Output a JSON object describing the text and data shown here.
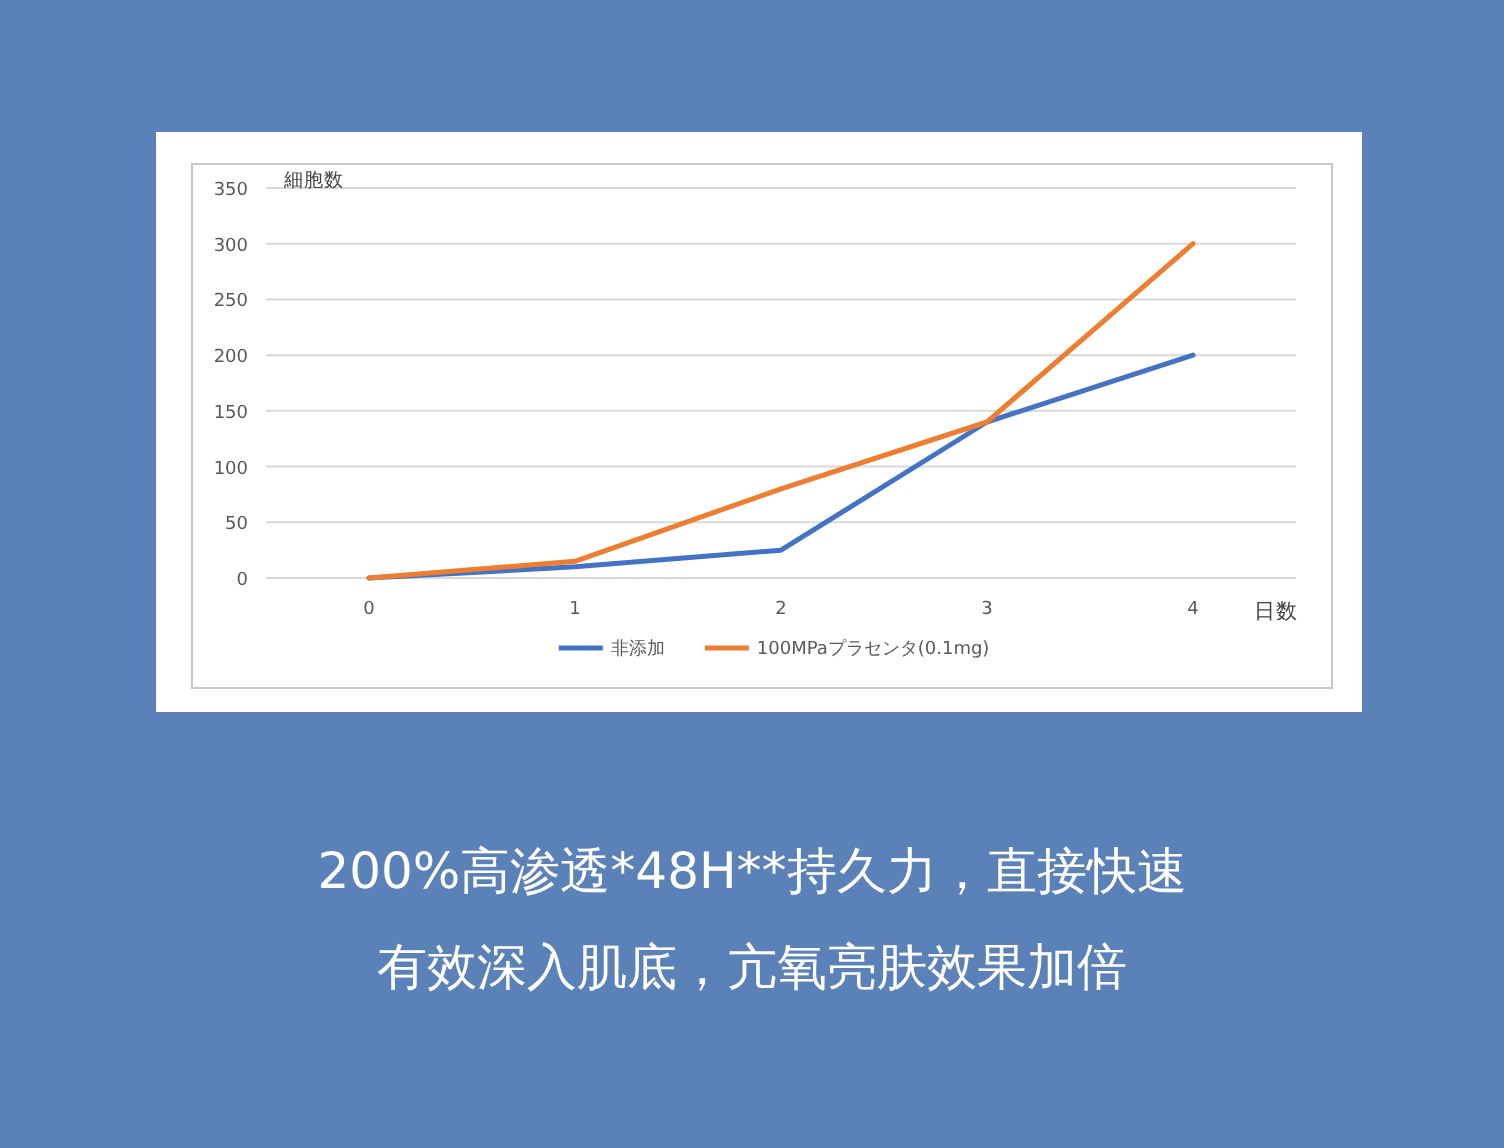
{
  "chart_data": {
    "type": "line",
    "ylabel": "細胞数",
    "xlabel": "日数",
    "categories": [
      "0",
      "1",
      "2",
      "3",
      "4"
    ],
    "series": [
      {
        "name": "非添加",
        "color": "#4472c4",
        "values": [
          0,
          10,
          25,
          140,
          200
        ]
      },
      {
        "name": "100MPaプラセンタ(0.1mg)",
        "color": "#ed7d31",
        "values": [
          0,
          15,
          80,
          140,
          300
        ]
      }
    ],
    "ylim": [
      0,
      350
    ],
    "yticks": [
      0,
      50,
      100,
      150,
      200,
      250,
      300,
      350
    ],
    "grid": "y",
    "legend": "bottom",
    "marker": "none",
    "line_style": "solid",
    "annotations": [
      "200%高渗透*48H**持久力，直接快速",
      "有效深入肌底，亢氧亮肤效果加倍"
    ]
  }
}
